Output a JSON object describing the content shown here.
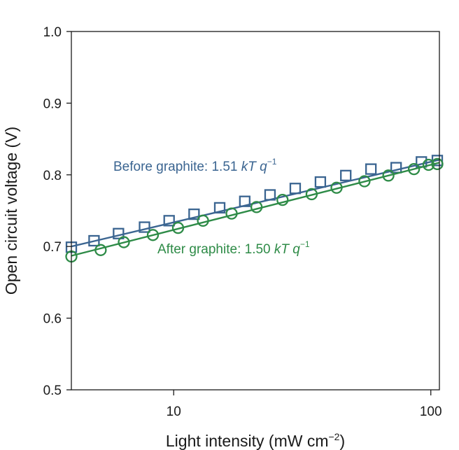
{
  "chart_data": {
    "type": "scatter",
    "title": "",
    "xlabel": {
      "text": "Light intensity (mW cm",
      "sup": "−2",
      "suffix": ")"
    },
    "ylabel": "Open circuit voltage (V)",
    "x_scale": "log",
    "xlim": [
      4,
      108
    ],
    "ylim": [
      0.5,
      1.0
    ],
    "x_ticks": [
      10,
      100
    ],
    "x_tick_labels": [
      "10",
      "100"
    ],
    "y_ticks": [
      0.5,
      0.6,
      0.7,
      0.8,
      0.9,
      1.0
    ],
    "y_tick_labels": [
      "0.5",
      "0.6",
      "0.7",
      "0.8",
      "0.9",
      "1.0"
    ],
    "grid": false,
    "series": [
      {
        "name": "Before graphite",
        "annotation": {
          "prefix": "Before graphite: 1.51 ",
          "italic": "kT q",
          "sup": "−1"
        },
        "marker": "square",
        "color": "#3b6591",
        "x": [
          4.0,
          4.9,
          6.1,
          7.7,
          9.6,
          12.0,
          15.1,
          18.9,
          23.7,
          29.7,
          37.2,
          46.7,
          58.5,
          73.3,
          91.9,
          106.0
        ],
        "y": [
          0.699,
          0.708,
          0.718,
          0.727,
          0.736,
          0.745,
          0.754,
          0.763,
          0.772,
          0.781,
          0.79,
          0.799,
          0.808,
          0.81,
          0.818,
          0.82
        ],
        "fit": {
          "x": [
            4.0,
            108
          ],
          "y": [
            0.7,
            0.821
          ]
        }
      },
      {
        "name": "After graphite",
        "annotation": {
          "prefix": "After graphite: 1.50 ",
          "italic": "kT q",
          "sup": "−1"
        },
        "marker": "circle",
        "color": "#2e8b47",
        "x": [
          4.0,
          5.2,
          6.4,
          8.3,
          10.4,
          13.0,
          16.8,
          21.0,
          26.5,
          34.4,
          43.0,
          55.2,
          68.4,
          86.0,
          98.0,
          106.0
        ],
        "y": [
          0.686,
          0.695,
          0.706,
          0.716,
          0.726,
          0.736,
          0.746,
          0.755,
          0.765,
          0.773,
          0.782,
          0.791,
          0.799,
          0.808,
          0.814,
          0.815
        ],
        "fit": {
          "x": [
            4.0,
            108
          ],
          "y": [
            0.687,
            0.817
          ]
        }
      }
    ]
  }
}
